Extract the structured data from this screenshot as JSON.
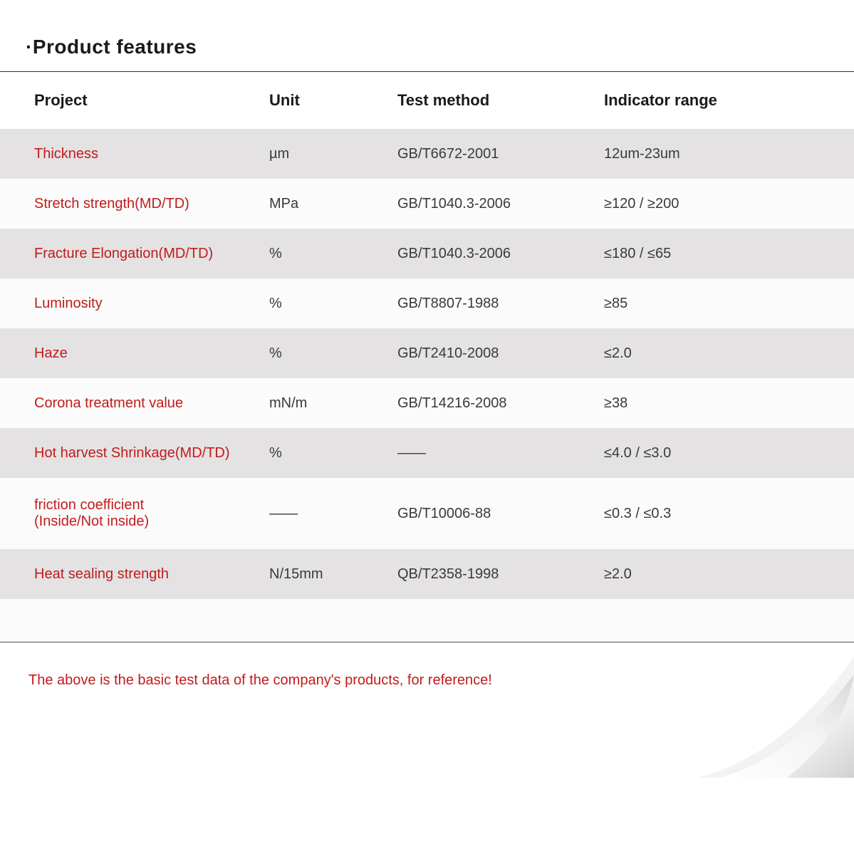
{
  "title": "·Product features",
  "colors": {
    "accent": "#c21b1b",
    "text": "#1a1a1a",
    "body_text": "#3a3a3a",
    "row_odd_bg": "#e4e2e3",
    "row_even_bg": "#fbfbfb",
    "page_bg": "#ffffff",
    "rule": "#333333"
  },
  "table": {
    "columns": [
      {
        "key": "project",
        "label": "Project"
      },
      {
        "key": "unit",
        "label": "Unit"
      },
      {
        "key": "method",
        "label": "Test method"
      },
      {
        "key": "range",
        "label": "Indicator range"
      }
    ],
    "rows": [
      {
        "project": "Thickness",
        "unit": "µm",
        "method": "GB/T6672-2001",
        "range": "12um-23um"
      },
      {
        "project": "Stretch strength(MD/TD)",
        "unit": "MPa",
        "method": "GB/T1040.3-2006",
        "range": "≥120 / ≥200"
      },
      {
        "project": "Fracture Elongation(MD/TD)",
        "unit": "%",
        "method": "GB/T1040.3-2006",
        "range": "≤180 / ≤65"
      },
      {
        "project": "Luminosity",
        "unit": "%",
        "method": "GB/T8807-1988",
        "range": "≥85"
      },
      {
        "project": "Haze",
        "unit": "%",
        "method": "GB/T2410-2008",
        "range": "≤2.0"
      },
      {
        "project": "Corona treatment value",
        "unit": "mN/m",
        "method": "GB/T14216-2008",
        "range": "≥38"
      },
      {
        "project": "Hot harvest Shrinkage(MD/TD)",
        "unit": "%",
        "method": "——",
        "range": "≤4.0 / ≤3.0"
      },
      {
        "project": "friction coefficient\n(Inside/Not inside)",
        "unit": "——",
        "method": "GB/T10006-88",
        "range": "≤0.3 / ≤0.3",
        "tall": true
      },
      {
        "project": "Heat sealing strength",
        "unit": "N/15mm",
        "method": "QB/T2358-1998",
        "range": "≥2.0"
      }
    ]
  },
  "note": "The above is the basic test data of the company's products, for reference!"
}
